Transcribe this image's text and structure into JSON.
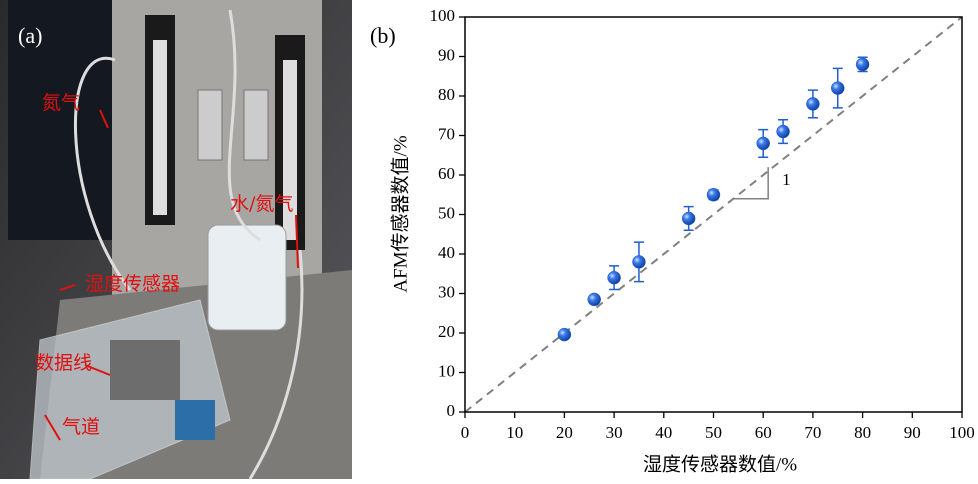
{
  "photo": {
    "label": "(a)",
    "annotations": [
      "氮气",
      "水/氮气",
      "湿度传感器",
      "数据线",
      "气道"
    ]
  },
  "chart_data": {
    "type": "scatter",
    "panel_label": "(b)",
    "x_label": "湿度传感器数值/%",
    "y_label": "AFM传感器数值/%",
    "x": [
      20,
      26,
      30,
      35,
      45,
      50,
      60,
      64,
      70,
      75,
      80
    ],
    "values": [
      19.6,
      28.5,
      34,
      38,
      49,
      55,
      68,
      71,
      78,
      82,
      88
    ],
    "errors": [
      0.5,
      1,
      3,
      5,
      3,
      1.2,
      3.5,
      3,
      3.5,
      5,
      1.8
    ],
    "color": "#1f5fd0",
    "reference_line": {
      "slope": 1,
      "intercept": 0,
      "color": "#808080"
    },
    "slope_label": "1",
    "xlim": [
      0,
      100
    ],
    "ylim": [
      0,
      100
    ],
    "xticks": [
      0,
      10,
      20,
      30,
      40,
      50,
      60,
      70,
      80,
      90,
      100
    ],
    "yticks": [
      0,
      10,
      20,
      30,
      40,
      50,
      60,
      70,
      80,
      90,
      100
    ]
  }
}
